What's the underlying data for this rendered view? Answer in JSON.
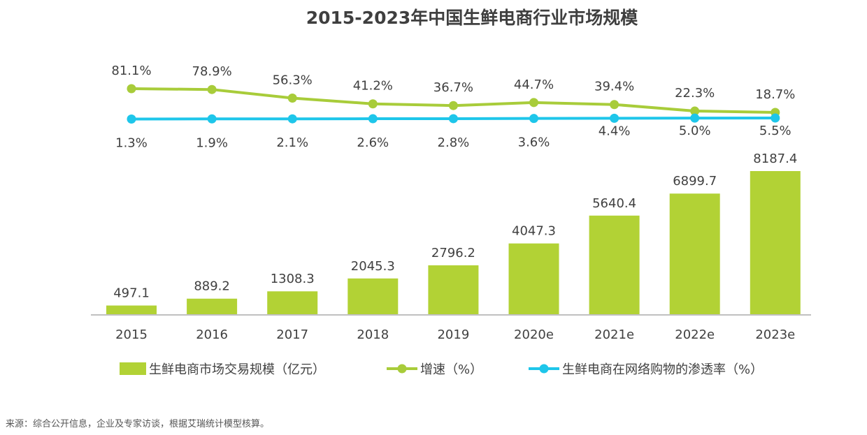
{
  "chart_data": {
    "type": "bar+line",
    "title": "2015-2023年中国生鲜电商行业市场规模",
    "categories": [
      "2015",
      "2016",
      "2017",
      "2018",
      "2019",
      "2020e",
      "2021e",
      "2022e",
      "2023e"
    ],
    "bar_series": {
      "name": "生鲜电商市场交易规模（亿元）",
      "values": [
        497.1,
        889.2,
        1308.3,
        2045.3,
        2796.2,
        4047.3,
        5640.4,
        6899.7,
        8187.4
      ],
      "labels": [
        "497.1",
        "889.2",
        "1308.3",
        "2045.3",
        "2796.2",
        "4047.3",
        "5640.4",
        "6899.7",
        "8187.4"
      ],
      "color": "#b2d235"
    },
    "line_series": [
      {
        "name": "增速（%）",
        "values": [
          81.1,
          78.9,
          56.3,
          41.2,
          36.7,
          44.7,
          39.4,
          22.3,
          18.7
        ],
        "labels": [
          "81.1%",
          "78.9%",
          "56.3%",
          "41.2%",
          "36.7%",
          "44.7%",
          "39.4%",
          "22.3%",
          "18.7%"
        ],
        "color": "#a8cc3a"
      },
      {
        "name": "生鲜电商在网络购物的渗透率（%）",
        "values": [
          1.3,
          1.9,
          2.1,
          2.6,
          2.8,
          3.6,
          4.4,
          5.0,
          5.5
        ],
        "labels": [
          "1.3%",
          "1.9%",
          "2.1%",
          "2.6%",
          "2.8%",
          "3.6%",
          "4.4%",
          "5.0%",
          "5.5%"
        ],
        "color": "#1ec6ea"
      }
    ],
    "legend": "bottom",
    "grid": false
  },
  "source": "来源：综合公开信息，企业及专家访谈，根据艾瑞统计模型核算。"
}
